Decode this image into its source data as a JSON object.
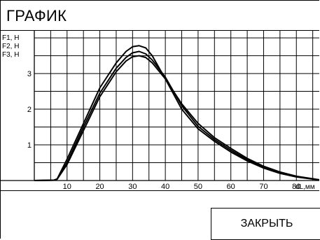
{
  "window": {
    "title": "ГРАФИК",
    "close_label": "ЗАКРЫТЬ"
  },
  "chart_data": {
    "type": "line",
    "title": "",
    "series_labels": [
      "F1, Н",
      "F2, Н",
      "F3, Н"
    ],
    "xlabel": "dL,мм",
    "xlim": [
      0,
      87
    ],
    "ylim": [
      0,
      4.1
    ],
    "x_ticks": [
      10,
      20,
      30,
      40,
      50,
      60,
      70,
      80
    ],
    "y_ticks": [
      1,
      2,
      3
    ],
    "grid": true,
    "series": [
      {
        "values": [
          [
            0,
            0
          ],
          [
            6,
            0.01
          ],
          [
            7,
            0.05
          ],
          [
            10,
            0.6
          ],
          [
            15,
            1.6
          ],
          [
            20,
            2.6
          ],
          [
            25,
            3.3
          ],
          [
            28,
            3.62
          ],
          [
            30,
            3.75
          ],
          [
            32,
            3.78
          ],
          [
            34,
            3.72
          ],
          [
            36,
            3.5
          ],
          [
            40,
            2.85
          ],
          [
            45,
            2.0
          ],
          [
            50,
            1.45
          ],
          [
            55,
            1.1
          ],
          [
            60,
            0.8
          ],
          [
            65,
            0.55
          ],
          [
            70,
            0.35
          ],
          [
            75,
            0.2
          ],
          [
            80,
            0.1
          ],
          [
            85,
            0.04
          ],
          [
            87,
            0.02
          ]
        ]
      },
      {
        "values": [
          [
            0,
            0
          ],
          [
            6,
            0.01
          ],
          [
            7,
            0.04
          ],
          [
            10,
            0.5
          ],
          [
            15,
            1.5
          ],
          [
            20,
            2.45
          ],
          [
            25,
            3.15
          ],
          [
            28,
            3.45
          ],
          [
            30,
            3.58
          ],
          [
            32,
            3.62
          ],
          [
            34,
            3.55
          ],
          [
            36,
            3.38
          ],
          [
            40,
            2.9
          ],
          [
            45,
            2.1
          ],
          [
            50,
            1.52
          ],
          [
            55,
            1.15
          ],
          [
            60,
            0.85
          ],
          [
            65,
            0.58
          ],
          [
            70,
            0.37
          ],
          [
            75,
            0.22
          ],
          [
            80,
            0.11
          ],
          [
            85,
            0.05
          ],
          [
            87,
            0.02
          ]
        ]
      },
      {
        "values": [
          [
            0,
            0
          ],
          [
            6,
            0.01
          ],
          [
            7,
            0.04
          ],
          [
            10,
            0.45
          ],
          [
            15,
            1.4
          ],
          [
            20,
            2.35
          ],
          [
            25,
            3.05
          ],
          [
            28,
            3.35
          ],
          [
            30,
            3.47
          ],
          [
            32,
            3.5
          ],
          [
            34,
            3.45
          ],
          [
            36,
            3.3
          ],
          [
            40,
            2.85
          ],
          [
            45,
            2.15
          ],
          [
            50,
            1.6
          ],
          [
            55,
            1.2
          ],
          [
            60,
            0.9
          ],
          [
            65,
            0.62
          ],
          [
            70,
            0.4
          ],
          [
            75,
            0.24
          ],
          [
            80,
            0.12
          ],
          [
            85,
            0.05
          ],
          [
            87,
            0.02
          ]
        ]
      }
    ],
    "colors": {
      "grid": "#000000",
      "line": "#000000",
      "background": "#ffffff"
    }
  }
}
